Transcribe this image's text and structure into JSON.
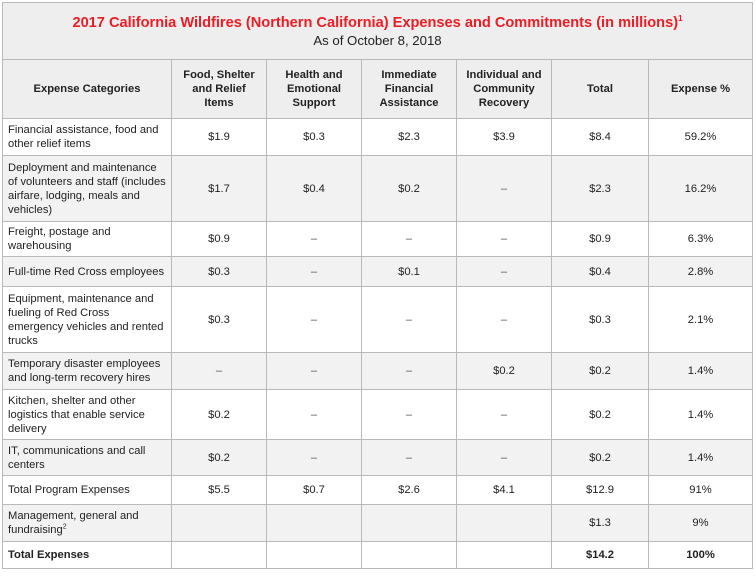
{
  "header": {
    "title": "2017 California Wildfires (Northern California) Expenses and Commitments (in millions)",
    "title_footnote": "1",
    "subtitle": "As of October 8, 2018"
  },
  "columns": [
    "Expense Categories",
    "Food, Shelter and Relief Items",
    "Health and Emotional Support",
    "Immediate Financial Assistance",
    "Individual and Community Recovery",
    "Total",
    "Expense %"
  ],
  "rows": [
    {
      "category": "Financial assistance, food and other relief items",
      "footnote": "",
      "cells": [
        "$1.9",
        "$0.3",
        "$2.3",
        "$3.9",
        "$8.4",
        "59.2%"
      ],
      "height": 37
    },
    {
      "category": "Deployment and maintenance of volunteers and staff (includes airfare, lodging, meals and vehicles)",
      "footnote": "",
      "cells": [
        "$1.7",
        "$0.4",
        "$0.2",
        "–",
        "$2.3",
        "16.2%"
      ],
      "height": 66
    },
    {
      "category": "Freight, postage and warehousing",
      "footnote": "",
      "cells": [
        "$0.9",
        "–",
        "–",
        "–",
        "$0.9",
        "6.3%"
      ],
      "height": 35
    },
    {
      "category": "Full-time Red Cross employees",
      "footnote": "",
      "cells": [
        "$0.3",
        "–",
        "$0.1",
        "–",
        "$0.4",
        "2.8%"
      ],
      "height": 30
    },
    {
      "category": "Equipment, maintenance and fueling of Red Cross emergency vehicles and rented trucks",
      "footnote": "",
      "cells": [
        "$0.3",
        "–",
        "–",
        "–",
        "$0.3",
        "2.1%"
      ],
      "height": 66
    },
    {
      "category": "Temporary disaster employees and long-term recovery hires",
      "footnote": "",
      "cells": [
        "–",
        "–",
        "–",
        "$0.2",
        "$0.2",
        "1.4%"
      ],
      "height": 37
    },
    {
      "category": "Kitchen, shelter and other logistics that enable service delivery",
      "footnote": "",
      "cells": [
        "$0.2",
        "–",
        "–",
        "–",
        "$0.2",
        "1.4%"
      ],
      "height": 50
    },
    {
      "category": "IT, communications and call centers",
      "footnote": "",
      "cells": [
        "$0.2",
        "–",
        "–",
        "–",
        "$0.2",
        "1.4%"
      ],
      "height": 36
    },
    {
      "category": "Total Program Expenses",
      "footnote": "",
      "cells": [
        "$5.5",
        "$0.7",
        "$2.6",
        "$4.1",
        "$12.9",
        "91%"
      ],
      "height": 29
    },
    {
      "category": "Management, general and fundraising",
      "footnote": "2",
      "cells": [
        "",
        "",
        "",
        "",
        "$1.3",
        "9%"
      ],
      "height": 37
    },
    {
      "category": "Total Expenses",
      "footnote": "",
      "cells": [
        "",
        "",
        "",
        "",
        "$14.2",
        "100%"
      ],
      "height": 27,
      "bold": true
    }
  ]
}
